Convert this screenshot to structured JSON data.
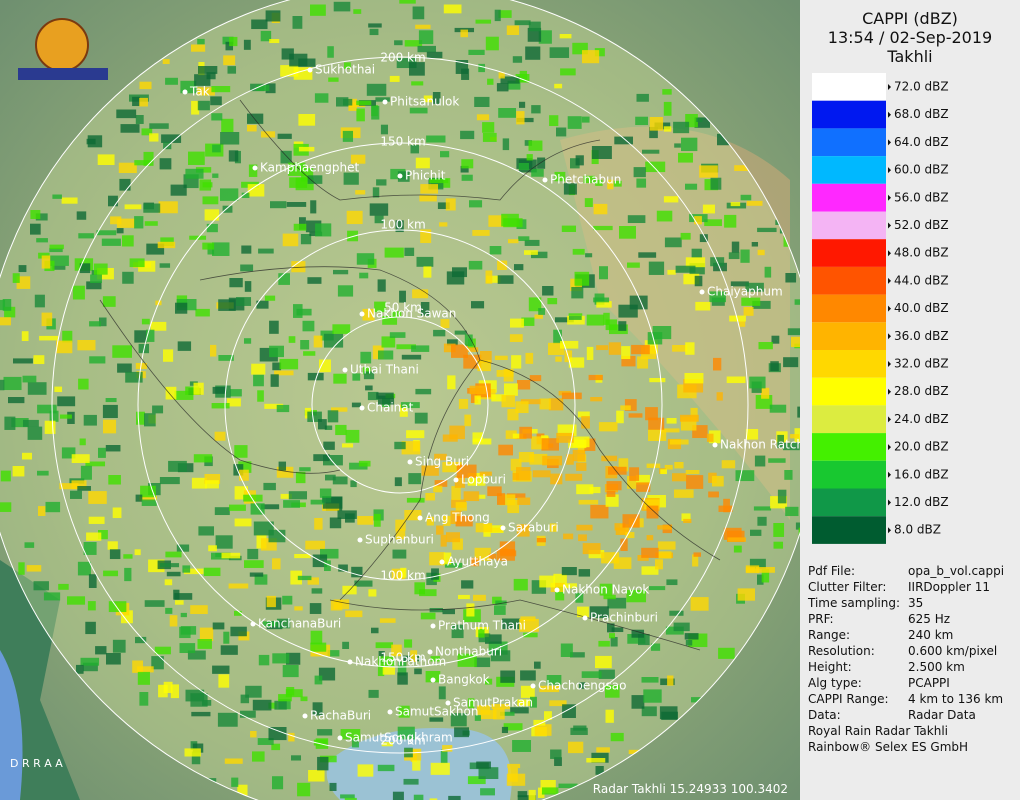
{
  "header": {
    "title": "CAPPI (dBZ)",
    "time": "13:54 / 02-Sep-2019",
    "station": "Takhli"
  },
  "legend": [
    {
      "label": "72.0 dBZ",
      "color": "#ffffff"
    },
    {
      "label": "68.0 dBZ",
      "color": "#0018f0"
    },
    {
      "label": "64.0 dBZ",
      "color": "#1070ff"
    },
    {
      "label": "60.0 dBZ",
      "color": "#00b8ff"
    },
    {
      "label": "56.0 dBZ",
      "color": "#ff28ff"
    },
    {
      "label": "52.0 dBZ",
      "color": "#f4b4f4"
    },
    {
      "label": "48.0 dBZ",
      "color": "#ff1800"
    },
    {
      "label": "44.0 dBZ",
      "color": "#ff5400"
    },
    {
      "label": "40.0 dBZ",
      "color": "#ff8800"
    },
    {
      "label": "36.0 dBZ",
      "color": "#ffb400"
    },
    {
      "label": "32.0 dBZ",
      "color": "#ffd800"
    },
    {
      "label": "28.0 dBZ",
      "color": "#ffff00"
    },
    {
      "label": "24.0 dBZ",
      "color": "#dcec40"
    },
    {
      "label": "20.0 dBZ",
      "color": "#44f000"
    },
    {
      "label": "16.0 dBZ",
      "color": "#18c830"
    },
    {
      "label": "12.0 dBZ",
      "color": "#109848"
    },
    {
      "label": "8.0 dBZ",
      "color": "#005c30"
    }
  ],
  "info": [
    [
      "Pdf File:",
      "opa_b_vol.cappi"
    ],
    [
      "Clutter Filter:",
      "IIRDoppler 11"
    ],
    [
      "Time sampling:",
      "35"
    ],
    [
      "PRF:",
      "625 Hz"
    ],
    [
      "Range:",
      "240 km"
    ],
    [
      "Resolution:",
      "0.600 km/pixel"
    ],
    [
      "Height:",
      "2.500 km"
    ],
    [
      "Alg type:",
      "PCAPPI"
    ],
    [
      "CAPPI Range:",
      "4 km to 136 km"
    ],
    [
      "Data:",
      "Radar Data"
    ]
  ],
  "credits": [
    "Royal Rain Radar Takhli",
    "Rainbow® Selex ES GmbH"
  ],
  "map": {
    "cities": [
      "Sukhothai",
      "Tak",
      "Phitsanulok",
      "Kamphaengphet",
      "Phichit",
      "Phetchabun",
      "Chaiyaphum",
      "Nakhon Sawan",
      "Uthai Thani",
      "Chainat",
      "Nakhon Ratchasima",
      "Sing Buri",
      "Lopburi",
      "Ang Thong",
      "Saraburi",
      "Suphanburi",
      "Ayutthaya",
      "Nakhon Nayok",
      "KanchanaBuri",
      "Prathum Thani",
      "Prachinburi",
      "Nonthaburi",
      "NakhonPathom",
      "Bangkok",
      "Chachoengsao",
      "SamutPrakan",
      "RachaBuri",
      "SamutSakhon",
      "SamutSongkhram"
    ],
    "ring_labels": [
      "50 km",
      "100 km",
      "150 km",
      "200 km",
      "100 km",
      "150 km",
      "200 km"
    ],
    "corner_text": "D R R A A",
    "footer": "Radar Takhli 15.24933 100.3402"
  }
}
